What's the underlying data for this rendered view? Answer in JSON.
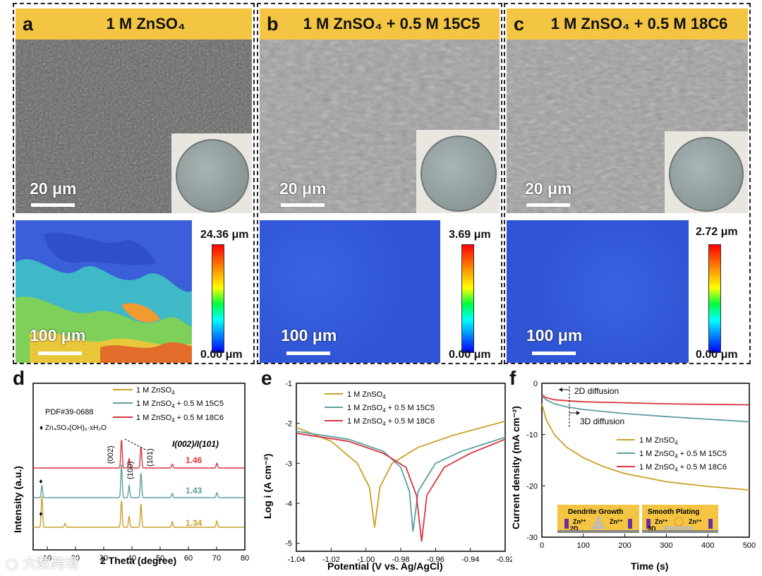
{
  "top_panels": [
    {
      "letter": "a",
      "title": "1 M ZnSO₄",
      "sem_scale": "20 μm",
      "map_scale": "100 μm",
      "cbar_max": "24.36 μm",
      "cbar_min": "0.00 μm"
    },
    {
      "letter": "b",
      "title": "1 M ZnSO₄ + 0.5 M 15C5",
      "sem_scale": "20 μm",
      "map_scale": "100 μm",
      "cbar_max": "3.69 μm",
      "cbar_min": "0.00 μm"
    },
    {
      "letter": "c",
      "title": "1 M ZnSO₄ + 0.5 M 18C6",
      "sem_scale": "20 μm",
      "map_scale": "100 μm",
      "cbar_max": "2.72 μm",
      "cbar_min": "0.00 μm"
    }
  ],
  "colors": {
    "banner": "#f4c542",
    "zn": "#c9a227",
    "c15": "#5e9ea0",
    "c18": "#d9363e"
  },
  "panel_d": {
    "letter": "d",
    "pdf_label": "PDF#39-0688",
    "marker_label": "♦ Zn₄SO₄(OH)₆·xH₂O",
    "ratio_label": "I(002)/I(101)",
    "peak_labels": [
      "(002)",
      "(100)",
      "(101)"
    ],
    "ratios": [
      "1.46",
      "1.43",
      "1.34"
    ],
    "xlabel": "2 Theta (degree)",
    "ylabel": "Intensity (a.u.)"
  },
  "panel_e": {
    "letter": "e",
    "xlabel": "Potential (V vs. Ag/AgCl)",
    "ylabel": "Log i (A cm⁻²)"
  },
  "panel_f": {
    "letter": "f",
    "xlabel": "Time (s)",
    "ylabel": "Current density (mA cm⁻²)",
    "ann_2d": "2D diffusion",
    "ann_3d": "3D diffusion",
    "inset_left_title": "Dendrite Growth",
    "inset_right_title": "Smooth Plating",
    "inset_ion": "Zn²⁺",
    "inset_2d": "2D",
    "inset_3d": "3D"
  },
  "watermark": "大数跨境",
  "chart_data": [
    {
      "type": "line",
      "panel": "d",
      "xlabel": "2 Theta (degree)",
      "ylabel": "Intensity (a.u.)",
      "xlim": [
        5,
        80
      ],
      "xticks": [
        10,
        20,
        30,
        40,
        50,
        60,
        70,
        80
      ],
      "series": [
        {
          "name": "1 M ZnSO₄",
          "peaks": [
            [
              8.1,
              1.0
            ],
            [
              16.3,
              0.12
            ],
            [
              36.3,
              0.85
            ],
            [
              39.0,
              0.35
            ],
            [
              43.2,
              0.75
            ],
            [
              54.3,
              0.18
            ],
            [
              70.1,
              0.2
            ]
          ]
        },
        {
          "name": "1 M ZnSO₄ + 0.5 M 15C5",
          "peaks": [
            [
              8.1,
              0.35
            ],
            [
              36.3,
              0.95
            ],
            [
              39.0,
              0.35
            ],
            [
              43.2,
              0.7
            ],
            [
              54.3,
              0.12
            ],
            [
              70.1,
              0.14
            ]
          ]
        },
        {
          "name": "1 M ZnSO₄ + 0.5 M 18C6",
          "peaks": [
            [
              36.3,
              0.9
            ],
            [
              39.0,
              0.3
            ],
            [
              43.2,
              0.68
            ],
            [
              54.3,
              0.12
            ],
            [
              70.1,
              0.15
            ]
          ]
        }
      ]
    },
    {
      "type": "line",
      "panel": "e",
      "xlabel": "Potential (V vs. Ag/AgCl)",
      "ylabel": "Log i (A cm⁻²)",
      "xlim": [
        -1.04,
        -0.92
      ],
      "ylim": [
        -5.2,
        -1
      ],
      "xticks": [
        -1.04,
        -1.02,
        -1.0,
        -0.98,
        -0.96,
        -0.94,
        -0.92
      ],
      "yticks": [
        -5,
        -4,
        -3,
        -2,
        -1
      ],
      "series": [
        {
          "name": "1 M ZnSO₄",
          "x": [
            -1.04,
            -1.02,
            -1.005,
            -0.998,
            -0.995,
            -0.992,
            -0.985,
            -0.97,
            -0.95,
            -0.92
          ],
          "y": [
            -2.1,
            -2.45,
            -3.0,
            -3.6,
            -4.6,
            -3.6,
            -3.0,
            -2.6,
            -2.3,
            -1.95
          ]
        },
        {
          "name": "1 M ZnSO₄ + 0.5 M 15C5",
          "x": [
            -1.04,
            -1.01,
            -0.99,
            -0.98,
            -0.975,
            -0.973,
            -0.97,
            -0.96,
            -0.945,
            -0.92
          ],
          "y": [
            -2.2,
            -2.4,
            -2.7,
            -3.1,
            -3.7,
            -4.7,
            -3.7,
            -3.0,
            -2.7,
            -2.35
          ]
        },
        {
          "name": "1 M ZnSO₄ + 0.5 M 18C6",
          "x": [
            -1.04,
            -1.01,
            -0.99,
            -0.977,
            -0.971,
            -0.968,
            -0.965,
            -0.955,
            -0.94,
            -0.92
          ],
          "y": [
            -2.25,
            -2.45,
            -2.75,
            -3.1,
            -3.8,
            -4.95,
            -3.8,
            -3.1,
            -2.75,
            -2.4
          ]
        }
      ]
    },
    {
      "type": "line",
      "panel": "f",
      "xlabel": "Time (s)",
      "ylabel": "Current density (mA cm⁻²)",
      "xlim": [
        0,
        500
      ],
      "ylim": [
        -30,
        0
      ],
      "xticks": [
        0,
        100,
        200,
        300,
        400,
        500
      ],
      "yticks": [
        0,
        -10,
        -20,
        -30
      ],
      "series": [
        {
          "name": "1 M ZnSO₄",
          "x": [
            0,
            10,
            30,
            60,
            100,
            150,
            200,
            300,
            400,
            500
          ],
          "y": [
            -4,
            -7,
            -10,
            -12.5,
            -14.5,
            -16.3,
            -17.6,
            -19.2,
            -20.1,
            -20.8
          ]
        },
        {
          "name": "1 M ZnSO₄ + 0.5 M 15C5",
          "x": [
            0,
            10,
            30,
            60,
            100,
            200,
            300,
            400,
            500
          ],
          "y": [
            -2.5,
            -3.2,
            -4.0,
            -4.6,
            -5.1,
            -5.9,
            -6.5,
            -7.0,
            -7.5
          ]
        },
        {
          "name": "1 M ZnSO₄ + 0.5 M 18C6",
          "x": [
            0,
            10,
            30,
            60,
            100,
            200,
            300,
            400,
            500
          ],
          "y": [
            -2.2,
            -2.8,
            -3.2,
            -3.4,
            -3.6,
            -3.8,
            -4.0,
            -4.1,
            -4.2
          ]
        }
      ]
    }
  ]
}
